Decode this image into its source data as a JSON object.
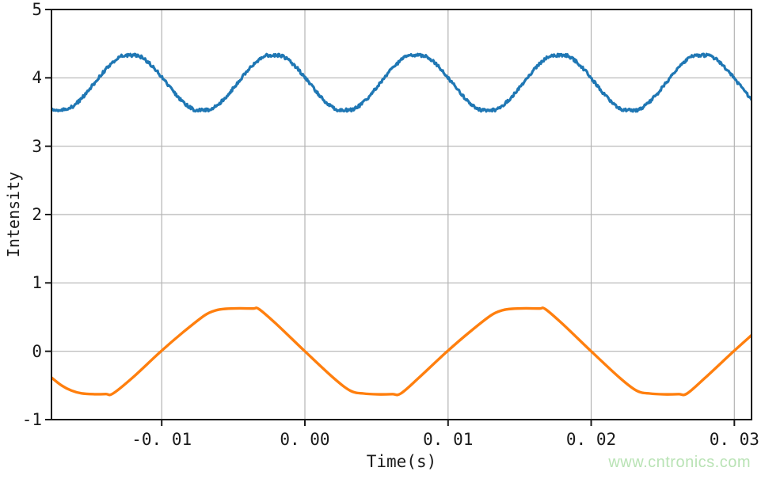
{
  "watermark": {
    "text": "www.cntronics.com",
    "color": "#b9e3b5"
  },
  "chart_data": {
    "type": "line",
    "title": "",
    "xlabel": "Time(s)",
    "ylabel": "Intensity",
    "xlim": [
      -0.0177,
      0.0312
    ],
    "ylim": [
      -1,
      5
    ],
    "grid": true,
    "legend": "none",
    "background_color": "#ffffff",
    "axis_color": "#1a1a1a",
    "grid_color": "#b3b3b3",
    "x_ticks": {
      "values": [
        -0.01,
        0.0,
        0.01,
        0.02,
        0.03
      ],
      "labels": [
        "-0. 01",
        "0. 00",
        "0. 01",
        "0. 02",
        "0. 03"
      ]
    },
    "y_ticks": {
      "values": [
        -1,
        0,
        1,
        2,
        3,
        4,
        5
      ],
      "labels": [
        "-1",
        "0",
        "1",
        "2",
        "3",
        "4",
        "5"
      ]
    },
    "series": [
      {
        "name": "blue-noisy-sine-wave",
        "color": "#1f77b4",
        "style": "noisy_flattened_sine",
        "mean": 3.93,
        "amplitude": 0.4,
        "period": 0.00998,
        "peak_x": -0.0022,
        "flatten_factor": 1.05,
        "noise_amplitude": 0.022,
        "peak_value": 4.33,
        "trough_value": 3.53,
        "peak_positions": [
          -0.0123,
          -0.0022,
          0.0076,
          0.0176,
          0.0276
        ]
      },
      {
        "name": "orange-clipped-sine-wave",
        "color": "#ff7f0e",
        "style": "keypoints",
        "period": 0.02,
        "peak_value": 0.63,
        "trough_value": -0.63,
        "zero_crossings_up": [
          -0.0101,
          0.0099,
          0.0299
        ],
        "zero_crossings_down": [
          0.0,
          0.02
        ],
        "points": [
          [
            -0.0177,
            -0.385
          ],
          [
            -0.017,
            -0.5
          ],
          [
            -0.0163,
            -0.575
          ],
          [
            -0.0156,
            -0.615
          ],
          [
            -0.0147,
            -0.628
          ],
          [
            -0.0139,
            -0.626
          ],
          [
            -0.0134,
            -0.618
          ],
          [
            -0.012,
            -0.38
          ],
          [
            -0.0101,
            -0.01
          ],
          [
            -0.0085,
            0.28
          ],
          [
            -0.007,
            0.525
          ],
          [
            -0.0062,
            0.6
          ],
          [
            -0.0055,
            0.622
          ],
          [
            -0.0045,
            0.628
          ],
          [
            -0.0036,
            0.625
          ],
          [
            -0.0032,
            0.617
          ],
          [
            -0.002,
            0.4
          ],
          [
            0.0,
            0.0
          ],
          [
            0.002,
            -0.39
          ],
          [
            0.0032,
            -0.58
          ],
          [
            0.0041,
            -0.618
          ],
          [
            0.0051,
            -0.63
          ],
          [
            0.0061,
            -0.627
          ],
          [
            0.0067,
            -0.618
          ],
          [
            0.008,
            -0.38
          ],
          [
            0.0099,
            -0.01
          ],
          [
            0.0115,
            0.28
          ],
          [
            0.013,
            0.525
          ],
          [
            0.0138,
            0.6
          ],
          [
            0.0145,
            0.622
          ],
          [
            0.0155,
            0.628
          ],
          [
            0.0164,
            0.625
          ],
          [
            0.0168,
            0.617
          ],
          [
            0.018,
            0.4
          ],
          [
            0.02,
            0.0
          ],
          [
            0.022,
            -0.39
          ],
          [
            0.0232,
            -0.58
          ],
          [
            0.0241,
            -0.618
          ],
          [
            0.0251,
            -0.63
          ],
          [
            0.0261,
            -0.627
          ],
          [
            0.0267,
            -0.618
          ],
          [
            0.028,
            -0.38
          ],
          [
            0.0299,
            -0.01
          ],
          [
            0.0312,
            0.235
          ]
        ]
      }
    ]
  }
}
